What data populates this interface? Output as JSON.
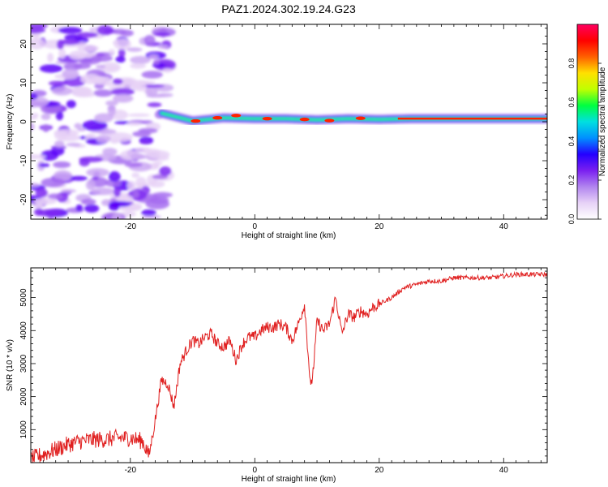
{
  "title": "PAZ1.2024.302.19.24.G23",
  "chart_data": [
    {
      "type": "heatmap",
      "xlabel": "Height of straight line (km)",
      "ylabel": "Frequency (Hz)",
      "xlim": [
        -36,
        47
      ],
      "ylim": [
        -25,
        25
      ],
      "xticks": [
        -20,
        0,
        20,
        40
      ],
      "yticks": [
        -20,
        -10,
        0,
        10,
        20
      ],
      "colorbar": {
        "label": "Normalized spectral amplitude",
        "range": [
          0,
          1
        ],
        "ticks": [
          "0.0",
          "0.2",
          "0.4",
          "0.6",
          "0.8"
        ],
        "colors": [
          "#ffffff",
          "#e7d2f7",
          "#b184ef",
          "#7a1ff0",
          "#2400ff",
          "#0090ff",
          "#00e0e0",
          "#00ff40",
          "#c0ff00",
          "#ffe000",
          "#ff6000",
          "#ff0000",
          "#ff0060"
        ]
      },
      "ridge": {
        "note_onset_km": -15,
        "points": [
          [
            -15,
            2.2
          ],
          [
            -10,
            0.2
          ],
          [
            -5,
            1.0
          ],
          [
            0,
            0.8
          ],
          [
            5,
            0.8
          ],
          [
            10,
            0.5
          ],
          [
            15,
            0.8
          ],
          [
            20,
            0.6
          ],
          [
            25,
            0.8
          ],
          [
            30,
            0.8
          ],
          [
            35,
            0.8
          ],
          [
            40,
            0.8
          ],
          [
            47,
            0.8
          ]
        ]
      }
    },
    {
      "type": "line",
      "xlabel": "Height of straight line (km)",
      "ylabel": "SNR (10 * v/v)",
      "xlim": [
        -36,
        47
      ],
      "ylim": [
        0,
        5900
      ],
      "xticks": [
        -20,
        0,
        20,
        40
      ],
      "yticks": [
        1000,
        2000,
        3000,
        4000,
        5000
      ],
      "color": "#e02020",
      "x": [
        -36,
        -34,
        -32,
        -30,
        -28,
        -26,
        -24,
        -22,
        -20,
        -18,
        -17,
        -16,
        -15,
        -14,
        -13,
        -12,
        -11,
        -10,
        -9,
        -8,
        -7,
        -6,
        -5,
        -4,
        -3,
        -2,
        -1,
        0,
        1,
        2,
        3,
        4,
        5,
        6,
        7,
        8,
        8.5,
        9,
        9.5,
        10,
        11,
        12,
        13,
        14,
        15,
        16,
        17,
        18,
        19,
        20,
        22,
        24,
        26,
        28,
        30,
        32,
        34,
        36,
        38,
        40,
        42,
        44,
        46,
        47
      ],
      "y": [
        100,
        250,
        400,
        550,
        650,
        700,
        700,
        750,
        750,
        650,
        200,
        1300,
        2500,
        2400,
        1700,
        3000,
        3400,
        3700,
        3600,
        3800,
        3900,
        3600,
        3500,
        3700,
        3100,
        3600,
        3800,
        3800,
        4000,
        4100,
        4100,
        4200,
        4100,
        3700,
        4200,
        4800,
        3500,
        2200,
        3000,
        4300,
        4000,
        4200,
        5000,
        3900,
        4500,
        4400,
        4600,
        4500,
        4700,
        4800,
        5000,
        5300,
        5400,
        5500,
        5500,
        5600,
        5600,
        5600,
        5600,
        5650,
        5700,
        5700,
        5700,
        5700
      ]
    }
  ]
}
